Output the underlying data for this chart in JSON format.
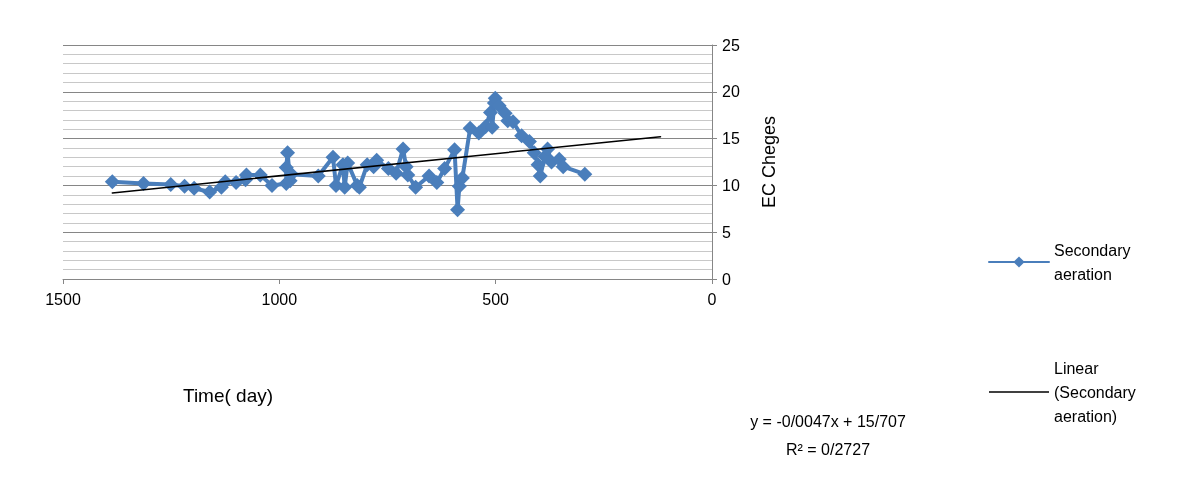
{
  "chart_data": {
    "type": "line",
    "xlabel": "Time( day)",
    "ylabel": "EC Cheges",
    "xlim": [
      1500,
      0
    ],
    "xticks": [
      1500,
      1000,
      500,
      0
    ],
    "ylim": [
      0,
      25
    ],
    "yticks": [
      0,
      5,
      10,
      15,
      20,
      25
    ],
    "grid": "y",
    "legend": "right",
    "marker": "diamond",
    "line_style": "solid",
    "annotations": [
      "y = -0/0047x + 15/707",
      "R² = 0/2727"
    ],
    "series": [
      {
        "name": "Secondary aeration",
        "color": "#4a7ebb",
        "x": [
          1386,
          1314,
          1251,
          1219,
          1197,
          1161,
          1134,
          1125,
          1100,
          1078,
          1076,
          1044,
          1017,
          984,
          984,
          981,
          975,
          972,
          910,
          876,
          869,
          853,
          849,
          842,
          820,
          815,
          797,
          782,
          775,
          748,
          730,
          714,
          707,
          703,
          685,
          654,
          636,
          618,
          595,
          588,
          584,
          577,
          559,
          539,
          523,
          512,
          508,
          503,
          501,
          492,
          478,
          472,
          460,
          440,
          422,
          411,
          402,
          397,
          386,
          380,
          371,
          353,
          344,
          294
        ],
        "values": [
          10.4,
          10.2,
          10.1,
          9.9,
          9.7,
          9.3,
          9.8,
          10.4,
          10.3,
          10.6,
          11.1,
          11.1,
          10.0,
          10.2,
          11.9,
          13.5,
          10.5,
          11.2,
          11.0,
          13.0,
          10.0,
          12.2,
          9.8,
          12.4,
          10.0,
          9.8,
          12.2,
          12.0,
          12.7,
          11.8,
          11.3,
          13.9,
          12.0,
          11.1,
          9.8,
          11.0,
          10.3,
          11.8,
          13.8,
          7.4,
          9.9,
          10.8,
          16.1,
          15.6,
          16.3,
          17.8,
          16.2,
          18.8,
          19.3,
          18.5,
          17.7,
          16.9,
          16.8,
          15.3,
          14.7,
          13.5,
          12.2,
          11.0,
          13.1,
          13.9,
          12.5,
          12.8,
          12.0,
          11.2
        ]
      },
      {
        "name": "Linear (Secondary aeration)",
        "type": "line",
        "color": "#000000",
        "marker": "none",
        "x": [
          1386,
          119
        ],
        "values": [
          9.2,
          15.2
        ]
      }
    ]
  }
}
